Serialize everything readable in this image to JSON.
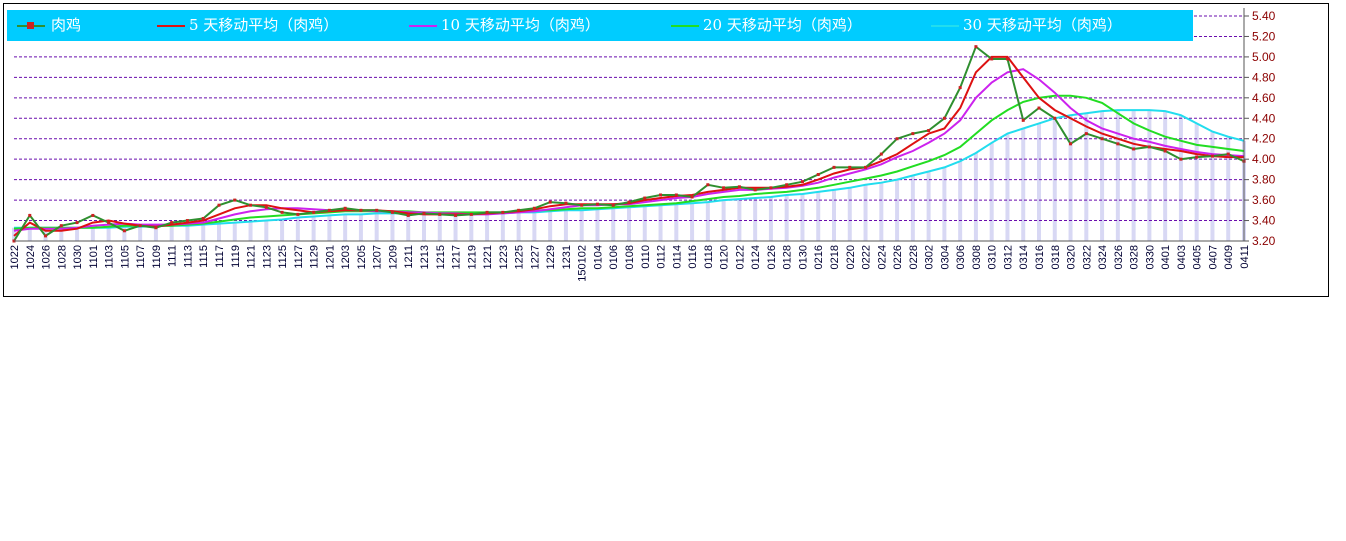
{
  "chart_data": {
    "type": "line",
    "title": "",
    "xlabel": "",
    "ylabel": "",
    "ylim": [
      3.2,
      5.4
    ],
    "y_ticks": [
      "3.20",
      "3.40",
      "3.60",
      "3.80",
      "4.00",
      "4.20",
      "4.40",
      "4.60",
      "4.80",
      "5.00",
      "5.20",
      "5.40"
    ],
    "y_axis_position": "right",
    "grid": "horizontal dashed",
    "legend_placement": "top",
    "categories": [
      "1022",
      "1024",
      "1026",
      "1028",
      "1030",
      "1101",
      "1103",
      "1105",
      "1107",
      "1109",
      "1111",
      "1113",
      "1115",
      "1117",
      "1119",
      "1121",
      "1123",
      "1125",
      "1127",
      "1129",
      "1201",
      "1203",
      "1205",
      "1207",
      "1209",
      "1211",
      "1213",
      "1215",
      "1217",
      "1219",
      "1221",
      "1223",
      "1225",
      "1227",
      "1229",
      "1231",
      "150102",
      "0104",
      "0106",
      "0108",
      "0110",
      "0112",
      "0114",
      "0116",
      "0118",
      "0120",
      "0122",
      "0124",
      "0126",
      "0128",
      "0130",
      "0216",
      "0218",
      "0220",
      "0222",
      "0224",
      "0226",
      "0228",
      "0302",
      "0304",
      "0306",
      "0308",
      "0310",
      "0312",
      "0314",
      "0316",
      "0318",
      "0320",
      "0322",
      "0324",
      "0326",
      "0328",
      "0330",
      "0401",
      "0403",
      "0405",
      "0407",
      "0409",
      "0411"
    ],
    "tick_labels": [
      "1022",
      "1024",
      "1026",
      "1028",
      "1030",
      "1101",
      "1103",
      "1105",
      "1107",
      "1109",
      "1111",
      "1113",
      "1115",
      "1117",
      "1119",
      "1121",
      "1123",
      "1125",
      "1127",
      "1129",
      "1201",
      "1203",
      "1205",
      "1207",
      "1209",
      "1211",
      "1213",
      "1215",
      "1217",
      "1219",
      "1221",
      "1223",
      "1225",
      "1227",
      "1229",
      "1231",
      "150102",
      "0104",
      "0106",
      "0108",
      "0110",
      "0112",
      "0114",
      "0116",
      "0118",
      "0120",
      "0122",
      "0124",
      "0126",
      "0128",
      "0130",
      "0216",
      "0218",
      "0220",
      "0222",
      "0224",
      "0226",
      "0228",
      "0302",
      "0304",
      "0306",
      "0308",
      "0310",
      "0312",
      "0314",
      "0316",
      "0318",
      "0320",
      "0322",
      "0324",
      "0326",
      "0328",
      "0330",
      "0401",
      "0403",
      "0405",
      "0407",
      "0409",
      "0411"
    ],
    "series": [
      {
        "name": "肉鸡",
        "color": "#2f8f2f",
        "marker_color": "#cc2222",
        "style": "line-with-markers",
        "values": [
          3.2,
          3.45,
          3.25,
          3.35,
          3.38,
          3.45,
          3.38,
          3.3,
          3.35,
          3.33,
          3.38,
          3.4,
          3.42,
          3.55,
          3.6,
          3.55,
          3.53,
          3.48,
          3.46,
          3.48,
          3.5,
          3.52,
          3.5,
          3.5,
          3.48,
          3.45,
          3.47,
          3.46,
          3.45,
          3.46,
          3.48,
          3.48,
          3.5,
          3.52,
          3.58,
          3.57,
          3.55,
          3.56,
          3.55,
          3.58,
          3.62,
          3.65,
          3.65,
          3.63,
          3.75,
          3.72,
          3.73,
          3.7,
          3.72,
          3.75,
          3.78,
          3.85,
          3.92,
          3.92,
          3.92,
          4.05,
          4.2,
          4.25,
          4.28,
          4.4,
          4.7,
          5.1,
          4.98,
          4.98,
          4.38,
          4.5,
          4.4,
          4.15,
          4.25,
          4.2,
          4.15,
          4.1,
          4.12,
          4.08,
          4.0,
          4.02,
          4.03,
          4.05,
          3.98
        ]
      },
      {
        "name": "5 天移动平均（肉鸡）",
        "color": "#dd1111",
        "values": [
          3.25,
          3.38,
          3.3,
          3.3,
          3.32,
          3.38,
          3.4,
          3.37,
          3.35,
          3.34,
          3.36,
          3.38,
          3.4,
          3.46,
          3.52,
          3.55,
          3.55,
          3.52,
          3.5,
          3.48,
          3.49,
          3.5,
          3.5,
          3.5,
          3.49,
          3.47,
          3.46,
          3.46,
          3.46,
          3.46,
          3.47,
          3.48,
          3.49,
          3.51,
          3.54,
          3.56,
          3.56,
          3.56,
          3.56,
          3.57,
          3.6,
          3.62,
          3.64,
          3.65,
          3.68,
          3.7,
          3.72,
          3.72,
          3.72,
          3.73,
          3.75,
          3.8,
          3.86,
          3.9,
          3.92,
          3.98,
          4.05,
          4.15,
          4.25,
          4.3,
          4.5,
          4.85,
          5.0,
          5.0,
          4.8,
          4.6,
          4.48,
          4.4,
          4.32,
          4.25,
          4.2,
          4.15,
          4.12,
          4.1,
          4.08,
          4.05,
          4.03,
          4.02,
          4.02
        ]
      },
      {
        "name": "10 天移动平均（肉鸡）",
        "color": "#cc22ee",
        "values": [
          3.3,
          3.32,
          3.32,
          3.32,
          3.33,
          3.35,
          3.36,
          3.37,
          3.36,
          3.36,
          3.36,
          3.37,
          3.38,
          3.42,
          3.46,
          3.49,
          3.51,
          3.52,
          3.52,
          3.51,
          3.5,
          3.5,
          3.5,
          3.49,
          3.49,
          3.48,
          3.48,
          3.47,
          3.47,
          3.46,
          3.46,
          3.47,
          3.48,
          3.49,
          3.51,
          3.53,
          3.55,
          3.55,
          3.56,
          3.56,
          3.58,
          3.6,
          3.62,
          3.63,
          3.66,
          3.68,
          3.7,
          3.7,
          3.71,
          3.72,
          3.74,
          3.77,
          3.82,
          3.86,
          3.9,
          3.95,
          4.02,
          4.08,
          4.16,
          4.25,
          4.38,
          4.6,
          4.75,
          4.85,
          4.88,
          4.78,
          4.65,
          4.5,
          4.38,
          4.3,
          4.25,
          4.2,
          4.17,
          4.13,
          4.1,
          4.07,
          4.05,
          4.04,
          4.03
        ]
      },
      {
        "name": "20 天移动平均（肉鸡）",
        "color": "#22dd22",
        "values": [
          3.32,
          3.33,
          3.33,
          3.33,
          3.33,
          3.33,
          3.34,
          3.35,
          3.35,
          3.35,
          3.35,
          3.36,
          3.37,
          3.39,
          3.41,
          3.43,
          3.44,
          3.45,
          3.46,
          3.47,
          3.48,
          3.49,
          3.49,
          3.49,
          3.49,
          3.49,
          3.48,
          3.48,
          3.48,
          3.48,
          3.48,
          3.48,
          3.49,
          3.5,
          3.5,
          3.51,
          3.52,
          3.52,
          3.53,
          3.54,
          3.55,
          3.56,
          3.57,
          3.59,
          3.61,
          3.63,
          3.64,
          3.66,
          3.67,
          3.68,
          3.7,
          3.72,
          3.75,
          3.78,
          3.81,
          3.84,
          3.88,
          3.93,
          3.98,
          4.04,
          4.12,
          4.25,
          4.38,
          4.48,
          4.56,
          4.6,
          4.62,
          4.62,
          4.6,
          4.55,
          4.45,
          4.35,
          4.28,
          4.22,
          4.18,
          4.14,
          4.12,
          4.1,
          4.08
        ]
      },
      {
        "name": "30 天移动平均（肉鸡）",
        "color": "#22ddee",
        "values": [
          3.33,
          3.33,
          3.33,
          3.33,
          3.33,
          3.33,
          3.33,
          3.34,
          3.34,
          3.35,
          3.35,
          3.35,
          3.36,
          3.37,
          3.38,
          3.39,
          3.4,
          3.41,
          3.43,
          3.44,
          3.45,
          3.46,
          3.46,
          3.47,
          3.47,
          3.47,
          3.47,
          3.47,
          3.47,
          3.47,
          3.47,
          3.47,
          3.48,
          3.48,
          3.49,
          3.5,
          3.5,
          3.51,
          3.52,
          3.53,
          3.54,
          3.55,
          3.56,
          3.57,
          3.58,
          3.6,
          3.61,
          3.62,
          3.63,
          3.65,
          3.66,
          3.68,
          3.7,
          3.72,
          3.75,
          3.77,
          3.8,
          3.84,
          3.88,
          3.92,
          3.98,
          4.06,
          4.16,
          4.25,
          4.3,
          4.35,
          4.4,
          4.43,
          4.45,
          4.47,
          4.48,
          4.48,
          4.48,
          4.47,
          4.43,
          4.35,
          4.27,
          4.22,
          4.18
        ]
      }
    ],
    "bar_fill_color": "#c8c8f0",
    "axis_label_color": "#8b0000",
    "grid_color": "#6a0dad"
  }
}
